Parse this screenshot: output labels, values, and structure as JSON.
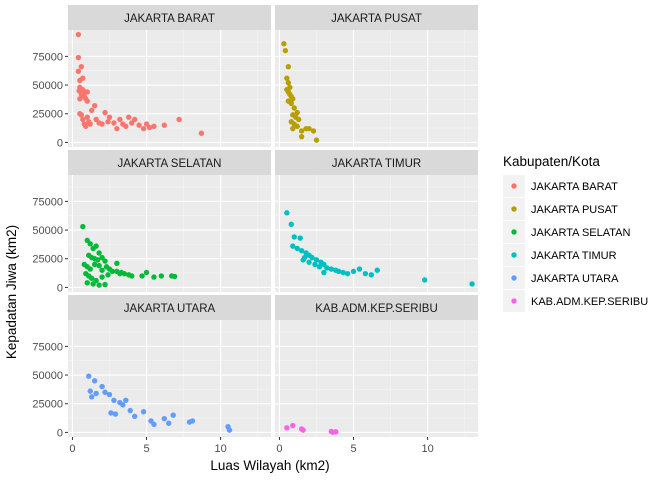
{
  "chart_data": {
    "type": "scatter",
    "xlabel": "Luas Wilayah (km2)",
    "ylabel": "Kepadatan Jiwa (km2)",
    "xlim": [
      -0.3,
      13.4
    ],
    "ylim": [
      -4000,
      98000
    ],
    "x_ticks": [
      0,
      5,
      10
    ],
    "x_tick_labels": [
      "0",
      "5",
      "10"
    ],
    "y_ticks": [
      0,
      25000,
      50000,
      75000
    ],
    "y_tick_labels": [
      "0",
      "25000",
      "50000",
      "75000"
    ],
    "grid": true,
    "facet": "wrap 2 columns",
    "legend": {
      "title": "Kabupaten/Kota",
      "position": "right"
    },
    "series": [
      {
        "name": "JAKARTA BARAT",
        "color": "#F8766D",
        "points": [
          [
            0.4,
            94000
          ],
          [
            0.4,
            74000
          ],
          [
            0.4,
            62000
          ],
          [
            0.5,
            54000
          ],
          [
            0.5,
            48000
          ],
          [
            0.45,
            45000
          ],
          [
            0.6,
            44000
          ],
          [
            0.6,
            42000
          ],
          [
            0.7,
            46000
          ],
          [
            0.5,
            38000
          ],
          [
            0.6,
            66000
          ],
          [
            0.7,
            56000
          ],
          [
            0.8,
            44000
          ],
          [
            0.8,
            40000
          ],
          [
            0.9,
            38000
          ],
          [
            1.0,
            44000
          ],
          [
            1.0,
            36000
          ],
          [
            0.5,
            25000
          ],
          [
            0.6,
            24000
          ],
          [
            0.7,
            20000
          ],
          [
            0.8,
            16000
          ],
          [
            0.9,
            14000
          ],
          [
            1.0,
            22000
          ],
          [
            1.1,
            18000
          ],
          [
            1.2,
            16000
          ],
          [
            1.3,
            28000
          ],
          [
            1.5,
            32000
          ],
          [
            1.6,
            20000
          ],
          [
            1.8,
            17000
          ],
          [
            2.0,
            16000
          ],
          [
            2.2,
            26000
          ],
          [
            2.4,
            18000
          ],
          [
            2.5,
            22000
          ],
          [
            2.8,
            17000
          ],
          [
            3.0,
            12000
          ],
          [
            3.2,
            20000
          ],
          [
            3.4,
            16000
          ],
          [
            3.6,
            14000
          ],
          [
            3.8,
            22000
          ],
          [
            4.0,
            17000
          ],
          [
            4.2,
            20000
          ],
          [
            4.5,
            15000
          ],
          [
            4.8,
            12000
          ],
          [
            5.0,
            16000
          ],
          [
            5.2,
            13000
          ],
          [
            5.5,
            14000
          ],
          [
            6.2,
            15000
          ],
          [
            7.2,
            20000
          ],
          [
            8.7,
            8000
          ]
        ]
      },
      {
        "name": "JAKARTA PUSAT",
        "color": "#B79F00",
        "points": [
          [
            0.3,
            86000
          ],
          [
            0.4,
            80000
          ],
          [
            0.6,
            66000
          ],
          [
            0.5,
            56000
          ],
          [
            0.6,
            52000
          ],
          [
            0.7,
            48000
          ],
          [
            0.5,
            46000
          ],
          [
            0.6,
            44000
          ],
          [
            0.7,
            42000
          ],
          [
            0.8,
            40000
          ],
          [
            0.9,
            38000
          ],
          [
            0.6,
            36000
          ],
          [
            0.8,
            34000
          ],
          [
            1.0,
            30000
          ],
          [
            1.2,
            26000
          ],
          [
            0.9,
            24000
          ],
          [
            1.1,
            22000
          ],
          [
            0.8,
            18000
          ],
          [
            1.0,
            16000
          ],
          [
            1.2,
            14000
          ],
          [
            0.9,
            12000
          ],
          [
            1.3,
            20000
          ],
          [
            1.5,
            10000
          ],
          [
            1.8,
            12000
          ],
          [
            2.0,
            12000
          ],
          [
            2.3,
            10000
          ],
          [
            1.5,
            5000
          ],
          [
            2.5,
            2000
          ]
        ]
      },
      {
        "name": "JAKARTA SELATAN",
        "color": "#00BA38",
        "points": [
          [
            0.7,
            53000
          ],
          [
            1.0,
            41000
          ],
          [
            1.2,
            38000
          ],
          [
            1.4,
            34000
          ],
          [
            1.6,
            36000
          ],
          [
            1.8,
            30000
          ],
          [
            1.1,
            28000
          ],
          [
            1.3,
            26000
          ],
          [
            1.5,
            25000
          ],
          [
            1.7,
            24000
          ],
          [
            2.0,
            26000
          ],
          [
            2.2,
            23000
          ],
          [
            0.8,
            20000
          ],
          [
            1.0,
            18000
          ],
          [
            1.2,
            16000
          ],
          [
            1.5,
            20000
          ],
          [
            1.8,
            19000
          ],
          [
            2.0,
            15000
          ],
          [
            2.3,
            18000
          ],
          [
            2.5,
            16000
          ],
          [
            2.7,
            14000
          ],
          [
            3.0,
            14000
          ],
          [
            3.2,
            12000
          ],
          [
            3.5,
            12000
          ],
          [
            3.8,
            11000
          ],
          [
            4.0,
            10000
          ],
          [
            0.9,
            12000
          ],
          [
            1.1,
            10000
          ],
          [
            1.3,
            8000
          ],
          [
            1.6,
            6000
          ],
          [
            2.0,
            9000
          ],
          [
            2.4,
            11000
          ],
          [
            1.0,
            4000
          ],
          [
            1.4,
            3000
          ],
          [
            1.8,
            2000
          ],
          [
            2.2,
            2500
          ],
          [
            5.0,
            13000
          ],
          [
            4.7,
            10000
          ],
          [
            5.5,
            9000
          ],
          [
            6.0,
            10000
          ],
          [
            6.7,
            10000
          ],
          [
            6.9,
            9500
          ],
          [
            3.0,
            21000
          ],
          [
            3.3,
            13000
          ]
        ]
      },
      {
        "name": "JAKARTA TIMUR",
        "color": "#00BFC4",
        "points": [
          [
            0.5,
            65000
          ],
          [
            0.8,
            55000
          ],
          [
            1.0,
            44000
          ],
          [
            1.4,
            43000
          ],
          [
            0.9,
            36000
          ],
          [
            1.2,
            34000
          ],
          [
            1.5,
            32000
          ],
          [
            1.8,
            30000
          ],
          [
            2.0,
            28000
          ],
          [
            2.2,
            26000
          ],
          [
            2.5,
            24000
          ],
          [
            2.8,
            22000
          ],
          [
            3.0,
            20000
          ],
          [
            1.6,
            24000
          ],
          [
            2.0,
            22000
          ],
          [
            2.4,
            20000
          ],
          [
            2.7,
            18000
          ],
          [
            3.2,
            17000
          ],
          [
            3.5,
            16000
          ],
          [
            3.8,
            15000
          ],
          [
            4.0,
            14000
          ],
          [
            4.3,
            13000
          ],
          [
            4.6,
            12000
          ],
          [
            5.0,
            14000
          ],
          [
            5.4,
            16000
          ],
          [
            5.8,
            12000
          ],
          [
            6.2,
            11000
          ],
          [
            6.6,
            15000
          ],
          [
            1.7,
            26000
          ],
          [
            3.0,
            13000
          ],
          [
            9.8,
            6500
          ],
          [
            13.0,
            3000
          ]
        ]
      },
      {
        "name": "JAKARTA UTARA",
        "color": "#619CFF",
        "points": [
          [
            1.1,
            49000
          ],
          [
            1.5,
            45000
          ],
          [
            2.0,
            40000
          ],
          [
            1.2,
            36000
          ],
          [
            1.6,
            34000
          ],
          [
            1.3,
            31000
          ],
          [
            2.2,
            35000
          ],
          [
            2.5,
            33000
          ],
          [
            2.8,
            28000
          ],
          [
            3.2,
            26000
          ],
          [
            3.6,
            28000
          ],
          [
            3.4,
            24000
          ],
          [
            3.9,
            19000
          ],
          [
            2.6,
            17000
          ],
          [
            2.9,
            16000
          ],
          [
            4.2,
            14000
          ],
          [
            4.8,
            18000
          ],
          [
            5.3,
            10000
          ],
          [
            5.5,
            7000
          ],
          [
            6.2,
            12000
          ],
          [
            6.5,
            8000
          ],
          [
            6.8,
            15000
          ],
          [
            7.9,
            9000
          ],
          [
            8.1,
            10000
          ],
          [
            10.5,
            5000
          ],
          [
            10.6,
            2000
          ]
        ]
      },
      {
        "name": "KAB.ADM.KEP.SERIBU",
        "color": "#F564E3",
        "points": [
          [
            0.5,
            4000
          ],
          [
            0.9,
            6000
          ],
          [
            1.5,
            3000
          ],
          [
            1.6,
            2000
          ],
          [
            3.5,
            800
          ],
          [
            3.8,
            500
          ],
          [
            3.6,
            200
          ]
        ]
      }
    ]
  }
}
